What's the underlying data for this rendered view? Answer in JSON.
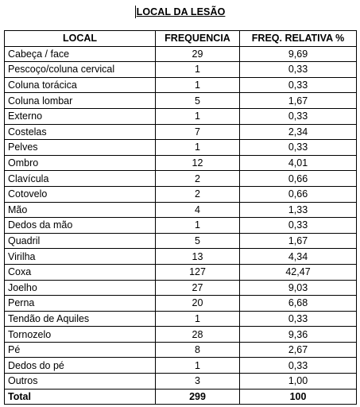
{
  "title": "LOCAL DA LESÃO",
  "table": {
    "headers": [
      "LOCAL",
      "FREQUENCIA",
      "FREQ. RELATIVA %"
    ],
    "rows": [
      [
        "Cabeça / face",
        "29",
        "9,69"
      ],
      [
        "Pescoço/coluna cervical",
        "1",
        "0,33"
      ],
      [
        "Coluna torácica",
        "1",
        "0,33"
      ],
      [
        "Coluna lombar",
        "5",
        "1,67"
      ],
      [
        "Externo",
        "1",
        "0,33"
      ],
      [
        "Costelas",
        "7",
        "2,34"
      ],
      [
        "Pelves",
        "1",
        "0,33"
      ],
      [
        "Ombro",
        "12",
        "4,01"
      ],
      [
        "Clavícula",
        "2",
        "0,66"
      ],
      [
        "Cotovelo",
        "2",
        "0,66"
      ],
      [
        "Mão",
        "4",
        "1,33"
      ],
      [
        "Dedos da mão",
        "1",
        "0,33"
      ],
      [
        "Quadril",
        "5",
        "1,67"
      ],
      [
        "Virilha",
        "13",
        "4,34"
      ],
      [
        "Coxa",
        "127",
        "42,47"
      ],
      [
        "Joelho",
        "27",
        "9,03"
      ],
      [
        "Perna",
        "20",
        "6,68"
      ],
      [
        "Tendão de Aquiles",
        "1",
        "0,33"
      ],
      [
        "Tornozelo",
        "28",
        "9,36"
      ],
      [
        "Pé",
        "8",
        "2,67"
      ],
      [
        "Dedos do pé",
        "1",
        "0,33"
      ],
      [
        "Outros",
        "3",
        "1,00"
      ]
    ],
    "total": [
      "Total",
      "299",
      "100"
    ]
  }
}
